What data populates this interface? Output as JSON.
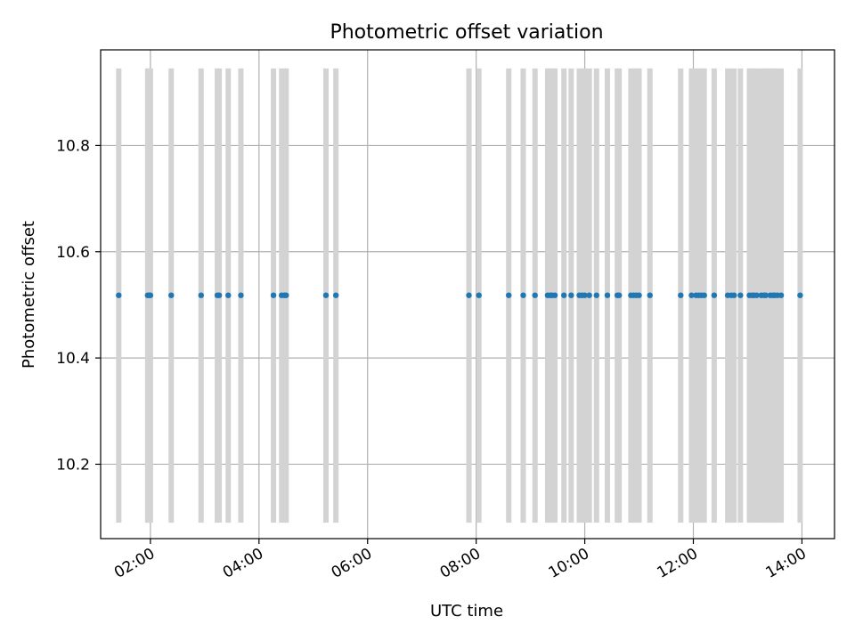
{
  "chart_data": {
    "type": "scatter",
    "title": "Photometric offset variation",
    "xlabel": "UTC time",
    "ylabel": "Photometric offset",
    "x_axis": {
      "kind": "time",
      "unit": "hours UTC",
      "range": [
        "01:05",
        "14:36"
      ],
      "ticks": [
        "02:00",
        "04:00",
        "06:00",
        "08:00",
        "10:00",
        "12:00",
        "14:00"
      ]
    },
    "y_axis": {
      "range": [
        10.06,
        10.98
      ],
      "ticks": [
        "10.2",
        "10.4",
        "10.6",
        "10.8"
      ]
    },
    "grid": true,
    "colors": {
      "points": "#1f77b4",
      "exposure_bars": "#d3d3d3",
      "grid": "#b0b0b0"
    },
    "bar_extent": [
      10.09,
      10.945
    ],
    "y_value": 10.518,
    "times": [
      "01:25",
      "01:57",
      "01:59",
      "02:00",
      "02:23",
      "02:56",
      "03:14",
      "03:16",
      "03:26",
      "03:40",
      "04:16",
      "04:25",
      "04:28",
      "04:30",
      "05:14",
      "05:25",
      "07:52",
      "08:03",
      "08:36",
      "08:52",
      "09:05",
      "09:19",
      "09:22",
      "09:24",
      "09:27",
      "09:37",
      "09:45",
      "09:54",
      "09:57",
      "10:00",
      "10:05",
      "10:13",
      "10:25",
      "10:36",
      "10:38",
      "10:51",
      "10:54",
      "10:57",
      "11:00",
      "11:12",
      "11:46",
      "11:58",
      "12:03",
      "12:06",
      "12:09",
      "12:12",
      "12:23",
      "12:38",
      "12:42",
      "12:45",
      "12:52",
      "13:02",
      "13:05",
      "13:07",
      "13:10",
      "13:15",
      "13:18",
      "13:20",
      "13:25",
      "13:28",
      "13:30",
      "13:33",
      "13:37",
      "13:58"
    ]
  }
}
